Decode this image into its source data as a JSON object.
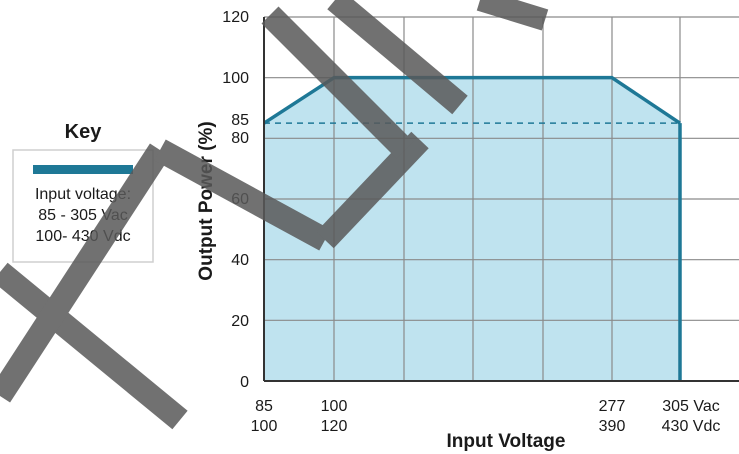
{
  "colors": {
    "series_line": "#1e7896",
    "fill": "#bfe3ef",
    "grid": "#8a8a8a",
    "watermark": "#595959"
  },
  "key": {
    "title": "Key",
    "lines": [
      "Input voltage:",
      "85 - 305 Vac",
      "100- 430 Vdc"
    ]
  },
  "chart_data": {
    "type": "area",
    "xlabel": "Input Voltage",
    "ylabel": "Output Power (%)",
    "ylim": [
      0,
      120
    ],
    "y_ticks": [
      "0",
      "20",
      "40",
      "60",
      "80",
      "85",
      "100",
      "120"
    ],
    "x_tick_labels": [
      {
        "ac": "85",
        "dc": "100"
      },
      {
        "ac": "100",
        "dc": "120"
      },
      {
        "ac": "277",
        "dc": "390"
      },
      {
        "ac": "305 Vac",
        "dc": "430 Vdc"
      }
    ],
    "x": [
      85,
      100,
      277,
      305
    ],
    "y": [
      85,
      100,
      100,
      85
    ],
    "reference_line": {
      "y": 85,
      "style": "dashed"
    },
    "grid": true
  }
}
